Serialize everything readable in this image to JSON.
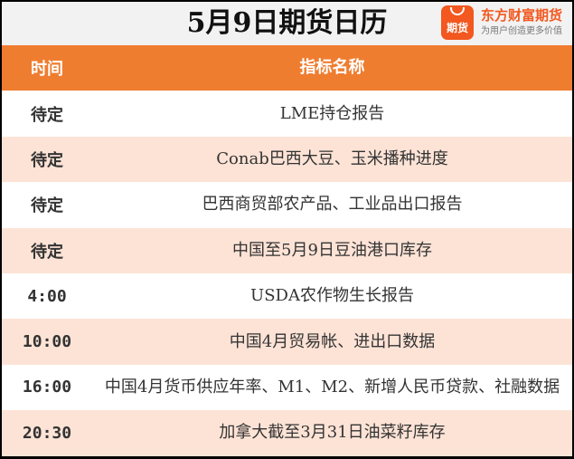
{
  "title": "5月9日期货日历",
  "logo": {
    "badge": "期货",
    "brand": "东方财富期货",
    "slogan": "为用户创造更多价值",
    "color": "#f2581f"
  },
  "colors": {
    "header": "#ef7d30",
    "alt_row": "#fde3d6"
  },
  "table": {
    "headers": [
      "时间",
      "指标名称"
    ],
    "rows": [
      {
        "time": "待定",
        "item": "LME持仓报告"
      },
      {
        "time": "待定",
        "item": "Conab巴西大豆、玉米播种进度"
      },
      {
        "time": "待定",
        "item": "巴西商贸部农产品、工业品出口报告"
      },
      {
        "time": "待定",
        "item": "中国至5月9日豆油港口库存"
      },
      {
        "time": "4:00",
        "item": "USDA农作物生长报告"
      },
      {
        "time": "10:00",
        "item": "中国4月贸易帐、进出口数据"
      },
      {
        "time": "16:00",
        "item": "中国4月货币供应年率、M1、M2、新增人民币贷款、社融数据"
      },
      {
        "time": "20:30",
        "item": "加拿大截至3月31日油菜籽库存"
      }
    ]
  }
}
